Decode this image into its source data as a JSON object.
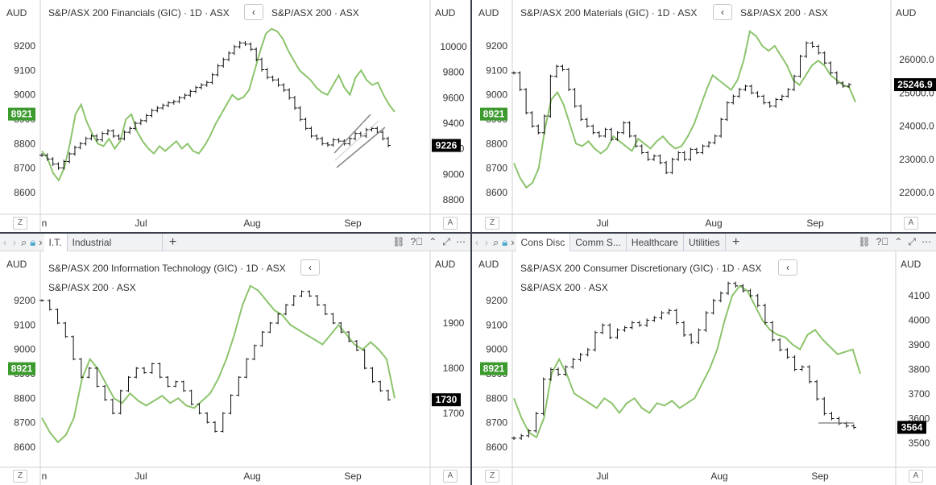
{
  "colors": {
    "price": "#111111",
    "compare": "#8cc46c",
    "badge_green": "#3c9a2e",
    "badge_black": "#000000",
    "grid_border": "#d0d2d6"
  },
  "common": {
    "currency": "AUD",
    "left_axis_ticks": [
      "9200",
      "9100",
      "9000",
      "8900",
      "8800",
      "8700",
      "8600"
    ],
    "left_axis_values": [
      9200,
      9100,
      9000,
      8900,
      8800,
      8700,
      8600
    ],
    "badge_value": "8921",
    "badge_level": 8921,
    "corner_left": "Z",
    "corner_right": "A",
    "back_icon": "‹"
  },
  "panels": [
    {
      "id": "financials",
      "title": "S&P/ASX 200 Financials (GIC) · 1D · ASX",
      "compare_label": "S&P/ASX 200 · ASX",
      "compare_inline": true,
      "right_ticks": [
        "10000",
        "9800",
        "9600",
        "9400",
        "9200",
        "9000",
        "8800"
      ],
      "right_values": [
        10000,
        9800,
        9600,
        9400,
        9200,
        9000,
        8800
      ],
      "last_price": "9226",
      "last_value": 9226,
      "x_labels": [
        "n",
        "Jul",
        "Aug",
        "Sep"
      ],
      "show_tabs": false,
      "tabs": [],
      "has_channel": true,
      "has_hline": false
    },
    {
      "id": "materials",
      "title": "S&P/ASX 200 Materials (GIC) · 1D · ASX",
      "compare_label": "S&P/ASX 200 · ASX",
      "compare_inline": true,
      "right_ticks": [
        "26000.0",
        "25000.0",
        "24000.0",
        "23000.0",
        "22000.0"
      ],
      "right_values": [
        26000,
        25000,
        24000,
        23000,
        22000
      ],
      "last_price": "25246.9",
      "last_value": 25246.9,
      "x_labels": [
        "Jul",
        "Aug",
        "Sep"
      ],
      "show_tabs": false,
      "tabs": [],
      "has_channel": false,
      "has_hline": false
    },
    {
      "id": "infotech",
      "title": "S&P/ASX 200 Information Technology (GIC) · 1D · ASX",
      "compare_label": "S&P/ASX 200 · ASX",
      "compare_inline": false,
      "right_ticks": [
        "1900",
        "1800",
        "1700"
      ],
      "right_values": [
        1900,
        1800,
        1700
      ],
      "last_price": "1730",
      "last_value": 1730,
      "x_labels": [
        "n",
        "Jul",
        "Aug",
        "Sep"
      ],
      "show_tabs": true,
      "tabs": [
        "I.T.",
        "Industrial"
      ],
      "has_channel": false,
      "has_hline": false
    },
    {
      "id": "consdisc",
      "title": "S&P/ASX 200 Consumer Discretionary (GIC) · 1D · ASX",
      "compare_label": "S&P/ASX 200 · ASX",
      "compare_inline": false,
      "right_ticks": [
        "4100",
        "4000",
        "3900",
        "3800",
        "3700",
        "3600",
        "3500"
      ],
      "right_values": [
        4100,
        4000,
        3900,
        3800,
        3700,
        3600,
        3500
      ],
      "last_price": "3564",
      "last_value": 3564,
      "x_labels": [
        "Jul",
        "Aug",
        "Sep"
      ],
      "show_tabs": true,
      "tabs": [
        "Cons Disc",
        "Comm S...",
        "Healthcare",
        "Utilities"
      ],
      "has_channel": false,
      "has_hline": true
    }
  ],
  "chart_data": [
    {
      "type": "line",
      "title": "S&P/ASX 200 Financials (GIC) · 1D · ASX",
      "series": [
        {
          "name": "S&P/ASX 200 Financials (GIC)",
          "axis": "right",
          "values": [
            9150,
            9120,
            9080,
            9050,
            9100,
            9160,
            9210,
            9240,
            9280,
            9300,
            9270,
            9320,
            9340,
            9300,
            9280,
            9330,
            9360,
            9400,
            9420,
            9460,
            9500,
            9520,
            9540,
            9560,
            9570,
            9600,
            9620,
            9650,
            9680,
            9700,
            9720,
            9780,
            9850,
            9900,
            9950,
            10000,
            10030,
            10020,
            9980,
            9900,
            9820,
            9760,
            9740,
            9700,
            9660,
            9600,
            9520,
            9430,
            9360,
            9300,
            9280,
            9240,
            9230,
            9270,
            9260,
            9240,
            9280,
            9320,
            9300,
            9350,
            9360,
            9330,
            9280,
            9226
          ]
        },
        {
          "name": "S&P/ASX 200",
          "axis": "left",
          "values": [
            8770,
            8740,
            8680,
            8650,
            8700,
            8800,
            8920,
            8960,
            8890,
            8840,
            8800,
            8790,
            8820,
            8780,
            8810,
            8900,
            8920,
            8850,
            8810,
            8780,
            8760,
            8790,
            8770,
            8790,
            8810,
            8780,
            8800,
            8770,
            8760,
            8790,
            8830,
            8880,
            8920,
            8960,
            9000,
            8980,
            8990,
            9020,
            9100,
            9180,
            9250,
            9270,
            9260,
            9230,
            9180,
            9140,
            9100,
            9080,
            9060,
            9030,
            9010,
            9000,
            9040,
            9080,
            9030,
            9000,
            9070,
            9100,
            9060,
            9040,
            9050,
            9000,
            8960,
            8930
          ]
        }
      ],
      "x_labels": [
        "Jul",
        "Aug",
        "Sep"
      ]
    },
    {
      "type": "line",
      "title": "S&P/ASX 200 Materials (GIC) · 1D · ASX",
      "series": [
        {
          "name": "S&P/ASX 200 Materials (GIC)",
          "axis": "right",
          "values": [
            25600,
            25100,
            24400,
            24000,
            23800,
            24300,
            25500,
            25800,
            25700,
            25100,
            24600,
            24200,
            24000,
            23800,
            23700,
            23900,
            23600,
            23800,
            24100,
            23700,
            23400,
            23200,
            23000,
            23100,
            22900,
            22600,
            23000,
            23200,
            23000,
            23300,
            23200,
            23400,
            23500,
            23700,
            24200,
            24700,
            24900,
            25100,
            25200,
            25000,
            24900,
            24700,
            24600,
            24800,
            24900,
            25100,
            25500,
            26100,
            26500,
            26400,
            26200,
            25900,
            25600,
            25300,
            25200,
            25246.9
          ]
        },
        {
          "name": "S&P/ASX 200",
          "axis": "left",
          "values": [
            8720,
            8660,
            8620,
            8640,
            8700,
            8860,
            8980,
            9010,
            8960,
            8880,
            8800,
            8790,
            8810,
            8780,
            8760,
            8780,
            8830,
            8810,
            8790,
            8770,
            8820,
            8800,
            8780,
            8810,
            8830,
            8800,
            8780,
            8790,
            8830,
            8880,
            8950,
            9020,
            9080,
            9060,
            9040,
            9020,
            9060,
            9140,
            9260,
            9240,
            9200,
            9180,
            9200,
            9160,
            9120,
            9060,
            9040,
            9080,
            9120,
            9140,
            9120,
            9080,
            9060,
            9040,
            9030,
            8970
          ]
        }
      ],
      "x_labels": [
        "Jul",
        "Aug",
        "Sep"
      ]
    },
    {
      "type": "line",
      "title": "S&P/ASX 200 Information Technology (GIC) · 1D · ASX",
      "series": [
        {
          "name": "S&P/ASX 200 Information Technology (GIC)",
          "axis": "right",
          "values": [
            1950,
            1930,
            1900,
            1870,
            1820,
            1780,
            1800,
            1760,
            1730,
            1700,
            1750,
            1780,
            1800,
            1790,
            1810,
            1780,
            1760,
            1770,
            1750,
            1720,
            1700,
            1680,
            1660,
            1700,
            1740,
            1780,
            1820,
            1850,
            1880,
            1900,
            1920,
            1940,
            1960,
            1970,
            1960,
            1940,
            1920,
            1900,
            1880,
            1860,
            1840,
            1800,
            1770,
            1750,
            1730
          ]
        },
        {
          "name": "S&P/ASX 200",
          "axis": "left",
          "values": [
            8720,
            8660,
            8620,
            8650,
            8720,
            8880,
            8960,
            8920,
            8860,
            8800,
            8780,
            8820,
            8790,
            8770,
            8790,
            8810,
            8780,
            8800,
            8770,
            8760,
            8790,
            8820,
            8880,
            8960,
            9060,
            9180,
            9260,
            9240,
            9200,
            9160,
            9140,
            9100,
            9080,
            9060,
            9040,
            9020,
            9060,
            9100,
            9060,
            9020,
            9000,
            9030,
            9000,
            8960,
            8800
          ]
        }
      ],
      "x_labels": [
        "Jul",
        "Aug",
        "Sep"
      ]
    },
    {
      "type": "line",
      "title": "S&P/ASX 200 Consumer Discretionary (GIC) · 1D · ASX",
      "series": [
        {
          "name": "S&P/ASX 200 Consumer Discretionary (GIC)",
          "axis": "right",
          "values": [
            3520,
            3530,
            3550,
            3620,
            3760,
            3800,
            3780,
            3810,
            3840,
            3860,
            3880,
            3950,
            3980,
            3930,
            3960,
            3970,
            3990,
            3980,
            4000,
            4010,
            4030,
            4040,
            3990,
            3940,
            3910,
            3960,
            4030,
            4080,
            4110,
            4150,
            4140,
            4120,
            4100,
            4060,
            3990,
            3920,
            3880,
            3850,
            3800,
            3810,
            3750,
            3680,
            3620,
            3600,
            3580,
            3570,
            3564
          ]
        },
        {
          "name": "S&P/ASX 200",
          "axis": "left",
          "values": [
            8800,
            8720,
            8660,
            8640,
            8720,
            8900,
            8960,
            8900,
            8820,
            8800,
            8780,
            8760,
            8800,
            8780,
            8740,
            8780,
            8800,
            8760,
            8740,
            8780,
            8770,
            8790,
            8760,
            8780,
            8800,
            8860,
            8920,
            9000,
            9120,
            9220,
            9260,
            9240,
            9180,
            9120,
            9080,
            9060,
            9050,
            9020,
            9000,
            9060,
            9080,
            9040,
            9010,
            8980,
            8990,
            9000,
            8900
          ]
        }
      ],
      "x_labels": [
        "Jul",
        "Aug",
        "Sep"
      ]
    }
  ]
}
